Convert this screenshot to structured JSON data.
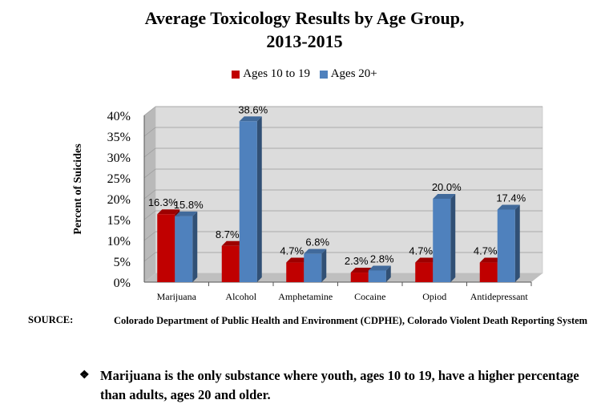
{
  "chart_data": {
    "type": "bar",
    "title_line1": "Average Toxicology Results by Age Group,",
    "title_line2": "2013-2015",
    "ylabel": "Percent of Suicides",
    "xlabel": "",
    "ylim": [
      0,
      40
    ],
    "yticks": [
      "0%",
      "5%",
      "10%",
      "15%",
      "20%",
      "25%",
      "30%",
      "35%",
      "40%"
    ],
    "categories": [
      "Marijuana",
      "Alcohol",
      "Amphetamine",
      "Cocaine",
      "Opiod",
      "Antidepressant"
    ],
    "series": [
      {
        "name": "Ages 10 to 19",
        "color": "#c00000",
        "values": [
          16.3,
          8.7,
          4.7,
          2.3,
          4.7,
          4.7
        ],
        "labels": [
          "16.3%",
          "8.7%",
          "4.7%",
          "2.3%",
          "4.7%",
          "4.7%"
        ]
      },
      {
        "name": "Ages 20+",
        "color": "#4f81bd",
        "values": [
          15.8,
          38.6,
          6.8,
          2.8,
          20.0,
          17.4
        ],
        "labels": [
          "15.8%",
          "38.6%",
          "6.8%",
          "2.8%",
          "20.0%",
          "17.4%"
        ]
      }
    ],
    "legend_position": "top"
  },
  "source": {
    "label": "SOURCE:",
    "text": "Colorado Department of Public Health and Environment (CDPHE), Colorado Violent Death Reporting System"
  },
  "note": {
    "bullet": "❖",
    "text": "Marijuana is the only substance where youth, ages 10 to 19, have a higher percentage than adults, ages 20 and older."
  }
}
